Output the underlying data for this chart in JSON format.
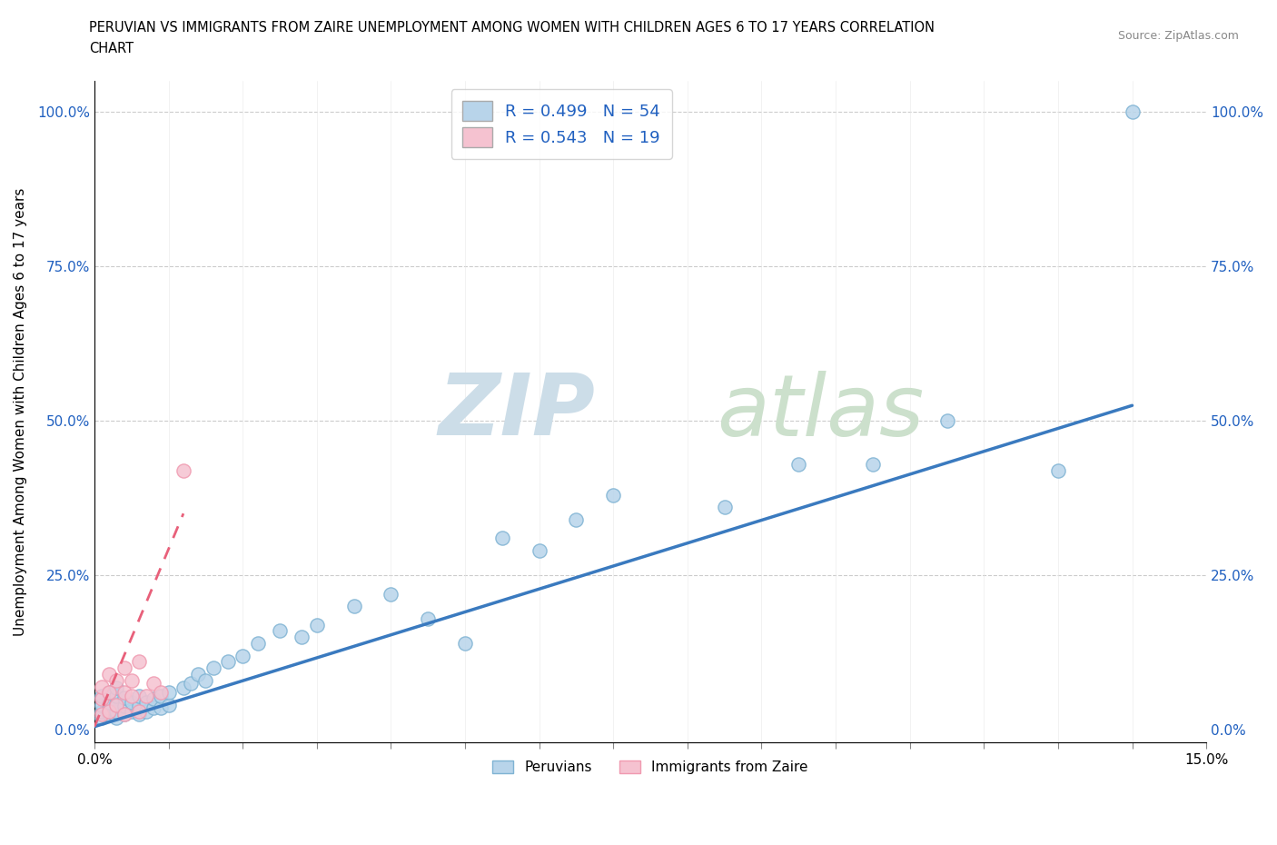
{
  "title_line1": "PERUVIAN VS IMMIGRANTS FROM ZAIRE UNEMPLOYMENT AMONG WOMEN WITH CHILDREN AGES 6 TO 17 YEARS CORRELATION",
  "title_line2": "CHART",
  "source": "Source: ZipAtlas.com",
  "ylabel": "Unemployment Among Women with Children Ages 6 to 17 years",
  "xlim": [
    0.0,
    0.15
  ],
  "ylim": [
    -0.02,
    1.05
  ],
  "ytick_labels": [
    "0.0%",
    "25.0%",
    "50.0%",
    "75.0%",
    "100.0%"
  ],
  "ytick_values": [
    0.0,
    0.25,
    0.5,
    0.75,
    1.0
  ],
  "xtick_labels": [
    "0.0%",
    "",
    "",
    "",
    "",
    "",
    "",
    "",
    "",
    "",
    "",
    "",
    "",
    "",
    "",
    "15.0%"
  ],
  "xtick_values": [
    0.0,
    0.01,
    0.02,
    0.03,
    0.04,
    0.05,
    0.06,
    0.07,
    0.08,
    0.09,
    0.1,
    0.11,
    0.12,
    0.13,
    0.14,
    0.15
  ],
  "peruvian_fill": "#b8d4ea",
  "peruvian_edge": "#7fb3d3",
  "zaire_fill": "#f5c2d0",
  "zaire_edge": "#f09ab0",
  "line_peruvian_color": "#3a7abf",
  "line_zaire_color": "#e8607a",
  "line_zaire_dash": [
    6,
    4
  ],
  "legend_text_color": "#2060c0",
  "R_peruvian": 0.499,
  "N_peruvian": 54,
  "R_zaire": 0.543,
  "N_zaire": 19,
  "peru_x": [
    0.001,
    0.001,
    0.001,
    0.001,
    0.002,
    0.002,
    0.002,
    0.002,
    0.003,
    0.003,
    0.003,
    0.003,
    0.003,
    0.004,
    0.004,
    0.004,
    0.005,
    0.005,
    0.006,
    0.006,
    0.006,
    0.007,
    0.007,
    0.008,
    0.008,
    0.009,
    0.009,
    0.01,
    0.01,
    0.012,
    0.013,
    0.014,
    0.015,
    0.016,
    0.018,
    0.02,
    0.022,
    0.025,
    0.028,
    0.03,
    0.035,
    0.04,
    0.045,
    0.05,
    0.055,
    0.06,
    0.065,
    0.07,
    0.085,
    0.095,
    0.105,
    0.115,
    0.13,
    0.14
  ],
  "peru_y": [
    0.02,
    0.03,
    0.04,
    0.055,
    0.025,
    0.035,
    0.045,
    0.06,
    0.02,
    0.03,
    0.042,
    0.055,
    0.068,
    0.025,
    0.038,
    0.052,
    0.03,
    0.045,
    0.025,
    0.038,
    0.055,
    0.03,
    0.045,
    0.035,
    0.05,
    0.035,
    0.055,
    0.04,
    0.06,
    0.068,
    0.075,
    0.09,
    0.08,
    0.1,
    0.11,
    0.12,
    0.14,
    0.16,
    0.15,
    0.17,
    0.2,
    0.22,
    0.18,
    0.14,
    0.31,
    0.29,
    0.34,
    0.38,
    0.36,
    0.43,
    0.43,
    0.5,
    0.42,
    1.0
  ],
  "zaire_x": [
    0.001,
    0.001,
    0.001,
    0.002,
    0.002,
    0.002,
    0.003,
    0.003,
    0.004,
    0.004,
    0.004,
    0.005,
    0.005,
    0.006,
    0.006,
    0.007,
    0.008,
    0.009,
    0.012
  ],
  "zaire_y": [
    0.025,
    0.05,
    0.07,
    0.03,
    0.06,
    0.09,
    0.04,
    0.08,
    0.025,
    0.06,
    0.1,
    0.055,
    0.08,
    0.03,
    0.11,
    0.055,
    0.075,
    0.06,
    0.42
  ],
  "peru_line_x0": 0.0,
  "peru_line_x1": 0.14,
  "peru_line_y0": 0.005,
  "peru_line_y1": 0.525,
  "zaire_line_x0": 0.0,
  "zaire_line_x1": 0.012,
  "zaire_line_y0": 0.005,
  "zaire_line_y1": 0.35
}
